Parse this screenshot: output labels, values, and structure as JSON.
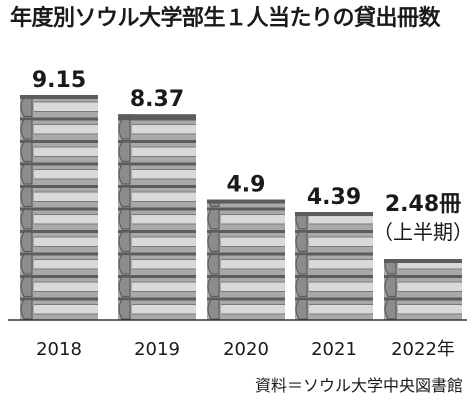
{
  "chart_data": {
    "type": "bar",
    "title": "年度別ソウル大学部生１人当たりの貸出冊数",
    "categories": [
      "2018",
      "2019",
      "2020",
      "2021",
      "2022年"
    ],
    "values": [
      9.15,
      8.37,
      4.9,
      4.39,
      2.48
    ],
    "value_labels": [
      "9.15",
      "8.37",
      "4.9",
      "4.39",
      "2.48冊"
    ],
    "annotations": [
      "（上半期）"
    ],
    "annotation_category": "2022年",
    "source": "資料＝ソウル大学中央図書館",
    "xlabel": "",
    "ylabel": "",
    "ylim": [
      0,
      9.15
    ],
    "grid": false,
    "legend": "none",
    "colors": {
      "book_face": "#a9a9a9",
      "book_spine": "#5c5c5c",
      "book_pages": "#d9d9d9",
      "axis": "#333333",
      "text": "#1a1a1a"
    }
  }
}
